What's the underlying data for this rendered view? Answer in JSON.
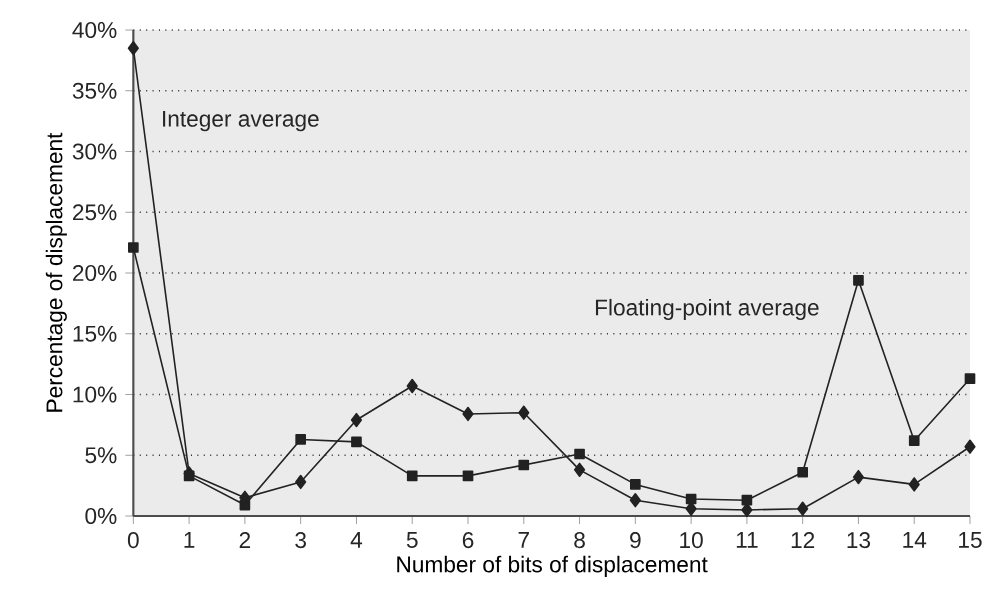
{
  "chart_data": {
    "type": "line",
    "xlabel": "Number of bits of displacement",
    "ylabel": "Percentage of displacement",
    "x": [
      0,
      1,
      2,
      3,
      4,
      5,
      6,
      7,
      8,
      9,
      10,
      11,
      12,
      13,
      14,
      15
    ],
    "series": [
      {
        "name": "Integer average",
        "color": "#222222",
        "marker": "diamond",
        "values": [
          38.5,
          3.5,
          1.5,
          2.8,
          7.9,
          10.7,
          8.4,
          8.5,
          3.8,
          1.3,
          0.6,
          0.5,
          0.6,
          3.2,
          2.6,
          5.7
        ]
      },
      {
        "name": "Floating-point average",
        "color": "#222222",
        "marker": "square",
        "values": [
          22.1,
          3.3,
          0.9,
          6.3,
          6.1,
          3.3,
          3.3,
          4.2,
          5.1,
          2.6,
          1.4,
          1.3,
          3.6,
          19.4,
          6.2,
          11.3
        ]
      }
    ],
    "xlim": [
      0,
      15
    ],
    "xticks": [
      0,
      1,
      2,
      3,
      4,
      5,
      6,
      7,
      8,
      9,
      10,
      11,
      12,
      13,
      14,
      15
    ],
    "ylim": [
      0,
      40
    ],
    "yticks": [
      {
        "value": 0,
        "label": "0%"
      },
      {
        "value": 5,
        "label": "5%"
      },
      {
        "value": 10,
        "label": "10%"
      },
      {
        "value": 15,
        "label": "15%"
      },
      {
        "value": 20,
        "label": "20%"
      },
      {
        "value": 25,
        "label": "25%"
      },
      {
        "value": 30,
        "label": "30%"
      },
      {
        "value": 35,
        "label": "35%"
      },
      {
        "value": 40,
        "label": "40%"
      }
    ],
    "grid": "y",
    "legend": false,
    "line_style": "solid"
  }
}
